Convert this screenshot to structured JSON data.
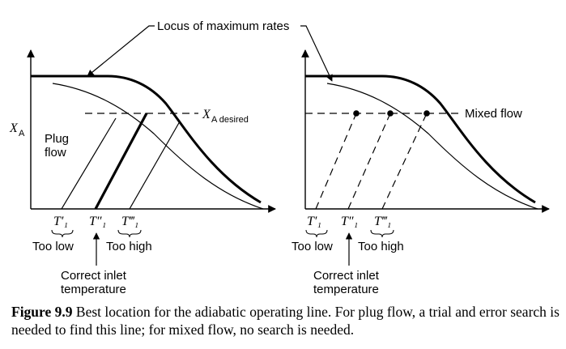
{
  "figure": {
    "top_label": "Locus of maximum rates",
    "left_panel": {
      "y_axis_label": "X",
      "y_axis_sub": "A",
      "desired_label": "X",
      "desired_sub": "A desired",
      "flow_label_line1": "Plug",
      "flow_label_line2": "flow",
      "t_labels": [
        "T′₁",
        "T″₁",
        "T‴₁"
      ],
      "too_low": "Too low",
      "too_high": "Too high",
      "correct_line1": "Correct inlet",
      "correct_line2": "temperature"
    },
    "right_panel": {
      "flow_label": "Mixed flow",
      "t_labels": [
        "T′₁",
        "T″₁",
        "T‴₁"
      ],
      "too_low": "Too low",
      "too_high": "Too high",
      "correct_line1": "Correct inlet",
      "correct_line2": "temperature"
    }
  },
  "caption": {
    "lead": "Figure 9.9",
    "text": " Best location for the adiabatic operating line. For plug flow, a trial and error search is needed to find this line; for mixed flow, no search is needed."
  }
}
